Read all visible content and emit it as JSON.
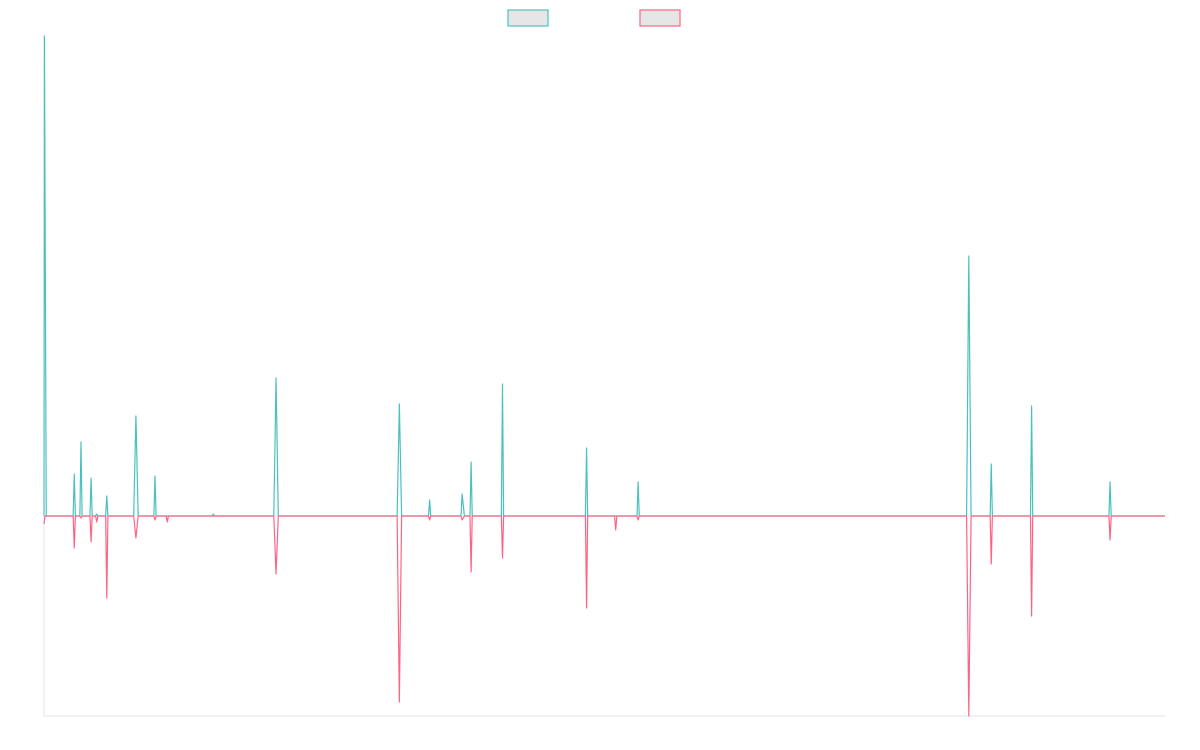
{
  "chart_data": {
    "type": "line",
    "title": "",
    "xlabel": "",
    "ylabel": "",
    "grid": false,
    "legend": {
      "position": "top-center",
      "swatch_fill": "#e6e6e6"
    },
    "x_domain": [
      0,
      1000
    ],
    "ylim": [
      -100,
      240
    ],
    "series": [
      {
        "color": "#4bc0c0",
        "points": [
          [
            0,
            0
          ],
          [
            0.4,
            240
          ],
          [
            2,
            0
          ],
          [
            26,
            0
          ],
          [
            27,
            21
          ],
          [
            28,
            0
          ],
          [
            32,
            0
          ],
          [
            33,
            37
          ],
          [
            34,
            0
          ],
          [
            41,
            0
          ],
          [
            42,
            19
          ],
          [
            43,
            0
          ],
          [
            46,
            0
          ],
          [
            47,
            1
          ],
          [
            48,
            0
          ],
          [
            55,
            0
          ],
          [
            56,
            10
          ],
          [
            57,
            0
          ],
          [
            61,
            0
          ],
          [
            62,
            0
          ],
          [
            65,
            0
          ],
          [
            66,
            0
          ],
          [
            80,
            0
          ],
          [
            82,
            50
          ],
          [
            84,
            0
          ],
          [
            98,
            0
          ],
          [
            99,
            20
          ],
          [
            100,
            0
          ],
          [
            109,
            0
          ],
          [
            110,
            0
          ],
          [
            111,
            0
          ],
          [
            150,
            0
          ],
          [
            151,
            1
          ],
          [
            152,
            0
          ],
          [
            205,
            0
          ],
          [
            207,
            69
          ],
          [
            209,
            0
          ],
          [
            315,
            0
          ],
          [
            317,
            56
          ],
          [
            319,
            0
          ],
          [
            343,
            0
          ],
          [
            344,
            8
          ],
          [
            345,
            0
          ],
          [
            372,
            0
          ],
          [
            373,
            11
          ],
          [
            375,
            0
          ],
          [
            380,
            0
          ],
          [
            381,
            27
          ],
          [
            382,
            0
          ],
          [
            408,
            0
          ],
          [
            409,
            66
          ],
          [
            410,
            0
          ],
          [
            483,
            0
          ],
          [
            484,
            34
          ],
          [
            485,
            0
          ],
          [
            509,
            0
          ],
          [
            510,
            0
          ],
          [
            511,
            0
          ],
          [
            529,
            0
          ],
          [
            530,
            17
          ],
          [
            531,
            0
          ],
          [
            823,
            0
          ],
          [
            825,
            130
          ],
          [
            827,
            0
          ],
          [
            844,
            0
          ],
          [
            845,
            26
          ],
          [
            846,
            0
          ],
          [
            880,
            0
          ],
          [
            881,
            55
          ],
          [
            882,
            0
          ],
          [
            950,
            0
          ],
          [
            951,
            17
          ],
          [
            952,
            0
          ],
          [
            1000,
            0
          ]
        ]
      },
      {
        "color": "#ff6384",
        "points": [
          [
            0,
            -4
          ],
          [
            1,
            0
          ],
          [
            26,
            0
          ],
          [
            27,
            -16
          ],
          [
            28,
            0
          ],
          [
            32,
            0
          ],
          [
            33,
            -1
          ],
          [
            34,
            0
          ],
          [
            41,
            0
          ],
          [
            42,
            -13
          ],
          [
            43,
            0
          ],
          [
            46,
            0
          ],
          [
            47,
            -3
          ],
          [
            48,
            0
          ],
          [
            55,
            0
          ],
          [
            56,
            -41
          ],
          [
            57,
            0
          ],
          [
            61,
            0
          ],
          [
            62,
            0
          ],
          [
            65,
            0
          ],
          [
            66,
            0
          ],
          [
            80,
            0
          ],
          [
            82,
            -11
          ],
          [
            84,
            0
          ],
          [
            98,
            0
          ],
          [
            99,
            -2
          ],
          [
            100,
            0
          ],
          [
            109,
            0
          ],
          [
            110,
            -3
          ],
          [
            111,
            0
          ],
          [
            150,
            0
          ],
          [
            151,
            0
          ],
          [
            152,
            0
          ],
          [
            205,
            0
          ],
          [
            207,
            -29
          ],
          [
            209,
            0
          ],
          [
            315,
            0
          ],
          [
            317,
            -93
          ],
          [
            319,
            0
          ],
          [
            343,
            0
          ],
          [
            344,
            -2
          ],
          [
            345,
            0
          ],
          [
            372,
            0
          ],
          [
            373,
            -2
          ],
          [
            375,
            0
          ],
          [
            380,
            0
          ],
          [
            381,
            -28
          ],
          [
            382,
            0
          ],
          [
            408,
            0
          ],
          [
            409,
            -21
          ],
          [
            410,
            0
          ],
          [
            483,
            0
          ],
          [
            484,
            -46
          ],
          [
            485,
            0
          ],
          [
            509,
            0
          ],
          [
            510,
            -7
          ],
          [
            511,
            0
          ],
          [
            529,
            0
          ],
          [
            530,
            -2
          ],
          [
            531,
            0
          ],
          [
            823,
            0
          ],
          [
            825,
            -100
          ],
          [
            827,
            0
          ],
          [
            844,
            0
          ],
          [
            845,
            -24
          ],
          [
            846,
            0
          ],
          [
            880,
            0
          ],
          [
            881,
            -50
          ],
          [
            882,
            0
          ],
          [
            950,
            0
          ],
          [
            951,
            -12
          ],
          [
            952,
            0
          ],
          [
            1000,
            0
          ]
        ]
      }
    ]
  }
}
